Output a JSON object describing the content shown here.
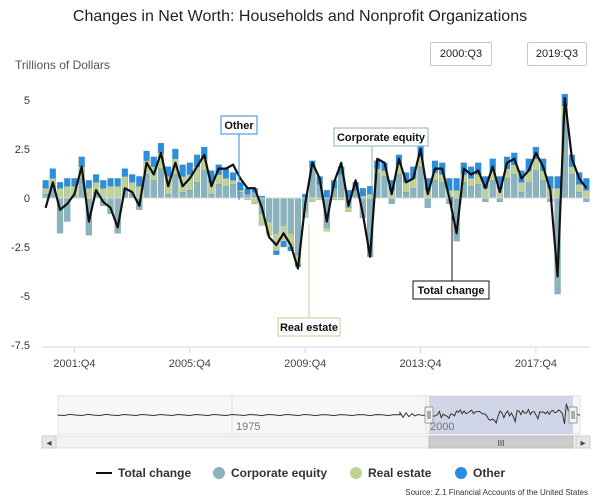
{
  "chart_data": {
    "type": "bar",
    "title": "Changes in Net Worth: Households and Nonprofit Organizations",
    "ylabel": "Trillions of Dollars",
    "ylim": [
      -7.5,
      5
    ],
    "yticks": [
      5,
      2.5,
      0,
      -2.5,
      -5,
      -7.5
    ],
    "ytick_labels": [
      "5",
      "2.5",
      "0",
      "-2.5",
      "-5",
      "-7.5"
    ],
    "x_tick_labels": [
      "2001:Q4",
      "2005:Q4",
      "2009:Q4",
      "2013:Q4",
      "2017:Q4"
    ],
    "x_tick_indices": [
      4,
      20,
      36,
      52,
      68
    ],
    "range_start": "2000:Q3",
    "range_end": "2019:Q3",
    "stacked": true,
    "series": [
      {
        "name": "Total change",
        "kind": "line",
        "color": "#111111",
        "values": [
          -0.5,
          0.8,
          -0.6,
          -0.3,
          0.2,
          1.6,
          -1.2,
          0.4,
          -0.2,
          -0.5,
          -1.5,
          0.5,
          0.3,
          -0.4,
          1.8,
          1.2,
          2.3,
          0.6,
          1.8,
          0.6,
          1.0,
          1.6,
          2.2,
          0.6,
          1.5,
          1.5,
          1.7,
          1.0,
          0.5,
          0.5,
          -0.5,
          -2.0,
          -2.4,
          -1.8,
          -2.4,
          -3.6,
          -0.3,
          1.8,
          1.0,
          -1.2,
          0.8,
          1.8,
          -0.4,
          0.9,
          -0.8,
          -3.0,
          2.0,
          1.8,
          0.2,
          2.0,
          0.8,
          1.0,
          2.5,
          0.2,
          1.5,
          1.5,
          0.0,
          -1.8,
          1.5,
          1.2,
          1.4,
          0.5,
          1.6,
          0.3,
          1.8,
          2.0,
          1.0,
          1.4,
          2.3,
          1.6,
          0.4,
          -4.0,
          5.1,
          2.0,
          1.0,
          0.5
        ]
      },
      {
        "name": "Corporate equity",
        "kind": "bar",
        "color": "#8ab3bd",
        "values": [
          0.2,
          0.6,
          -1.8,
          -1.2,
          0.1,
          1.0,
          -1.9,
          0.3,
          -0.4,
          -0.8,
          -1.8,
          0.5,
          0.2,
          -0.6,
          1.2,
          0.9,
          1.5,
          0.2,
          1.2,
          0.3,
          0.4,
          0.8,
          1.4,
          0.2,
          0.7,
          0.6,
          0.7,
          0.3,
          0.2,
          0.3,
          -0.8,
          -1.2,
          -1.8,
          -1.4,
          -1.8,
          -2.9,
          -0.7,
          1.6,
          0.7,
          -1.5,
          0.5,
          1.2,
          -0.5,
          0.4,
          -1.0,
          -3.0,
          1.2,
          1.1,
          -0.3,
          1.2,
          0.3,
          0.5,
          1.6,
          -0.5,
          0.9,
          0.8,
          -0.3,
          -2.2,
          0.8,
          0.6,
          0.7,
          -0.2,
          0.9,
          -0.2,
          1.0,
          1.2,
          0.3,
          0.8,
          1.4,
          0.9,
          -0.2,
          -4.9,
          4.2,
          1.2,
          0.3,
          -0.2
        ]
      },
      {
        "name": "Real estate",
        "kind": "bar",
        "color": "#c0d195",
        "values": [
          0.3,
          0.4,
          0.5,
          0.6,
          0.5,
          0.6,
          0.5,
          0.5,
          0.5,
          0.6,
          0.6,
          0.6,
          0.6,
          0.6,
          0.7,
          0.7,
          0.8,
          0.9,
          0.8,
          0.8,
          0.8,
          0.8,
          0.6,
          0.6,
          0.5,
          0.4,
          0.2,
          0.1,
          -0.1,
          -0.3,
          -0.6,
          -0.7,
          -0.9,
          -0.8,
          -0.7,
          -0.5,
          -0.3,
          -0.2,
          -0.1,
          -0.2,
          -0.1,
          -0.1,
          -0.2,
          0.0,
          0.1,
          0.2,
          0.3,
          0.3,
          0.4,
          0.5,
          0.5,
          0.5,
          0.5,
          0.4,
          0.4,
          0.4,
          0.4,
          0.4,
          0.4,
          0.4,
          0.5,
          0.5,
          0.5,
          0.5,
          0.5,
          0.5,
          0.5,
          0.6,
          0.6,
          0.5,
          0.5,
          0.5,
          0.5,
          0.4,
          0.4,
          0.4
        ]
      },
      {
        "name": "Other",
        "kind": "bar",
        "color": "#2a8ee0",
        "values": [
          0.4,
          0.5,
          0.3,
          0.4,
          0.4,
          0.5,
          0.4,
          0.4,
          0.4,
          0.4,
          0.4,
          0.4,
          0.4,
          0.5,
          0.5,
          0.5,
          0.5,
          0.5,
          0.5,
          0.6,
          0.6,
          0.6,
          0.6,
          0.6,
          0.5,
          0.5,
          0.4,
          0.4,
          0.3,
          0.2,
          0.1,
          0.0,
          -0.2,
          -0.3,
          -0.2,
          -0.1,
          0.2,
          0.3,
          0.4,
          0.4,
          0.4,
          0.4,
          0.4,
          0.4,
          0.4,
          0.4,
          0.4,
          0.4,
          0.5,
          0.5,
          0.5,
          0.6,
          0.6,
          0.6,
          0.6,
          0.6,
          0.6,
          0.6,
          0.6,
          0.6,
          0.6,
          0.6,
          0.6,
          0.6,
          0.6,
          0.6,
          0.6,
          0.6,
          0.6,
          0.6,
          0.6,
          0.6,
          0.6,
          0.6,
          0.6,
          0.6
        ]
      }
    ],
    "annotations": [
      {
        "text": "Other",
        "border": "#2a8ee0"
      },
      {
        "text": "Corporate equity",
        "border": "#8ab3bd"
      },
      {
        "text": "Real estate",
        "border": "#c0d195"
      },
      {
        "text": "Total change",
        "border": "#111111"
      }
    ],
    "navigator": {
      "labels": [
        "1975",
        "2000"
      ],
      "scroll_grip": "III",
      "left_arrow": "◂",
      "right_arrow": "▸"
    },
    "legend": [
      "Total change",
      "Corporate equity",
      "Real estate",
      "Other"
    ],
    "legend_placement": "bottom",
    "source": "Source: Z.1 Financial Accounts of the United States"
  }
}
